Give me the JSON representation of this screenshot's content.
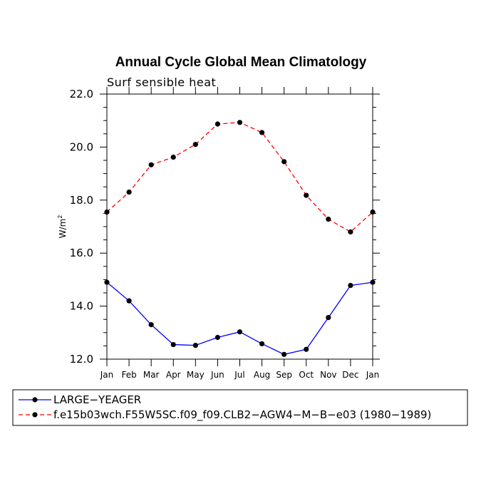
{
  "chart_data": {
    "type": "line",
    "title": "Annual Cycle Global Mean Climatology",
    "subtitle": "Surf sensible heat",
    "xlabel": "",
    "ylabel_base": "W/m",
    "ylabel_sup": "2",
    "ylim": [
      12.0,
      22.0
    ],
    "ytick_values": [
      12.0,
      14.0,
      16.0,
      18.0,
      20.0,
      22.0
    ],
    "ytick_labels": [
      "12.0",
      "14.0",
      "16.0",
      "18.0",
      "20.0",
      "22.0"
    ],
    "categories": [
      "Jan",
      "Feb",
      "Mar",
      "Apr",
      "May",
      "Jun",
      "Jul",
      "Aug",
      "Sep",
      "Oct",
      "Nov",
      "Dec",
      "Jan"
    ],
    "series": [
      {
        "name": "LARGE−YEAGER",
        "color": "#0000ff",
        "dash": "solid",
        "values": [
          14.9,
          14.2,
          13.3,
          12.55,
          12.52,
          12.82,
          13.03,
          12.58,
          12.18,
          12.37,
          13.57,
          14.78,
          14.9
        ]
      },
      {
        "name": "f.e15b03wch.F55W5SC.f09_f09.CLB2−AGW4−M−B−e03 (1980−1989)",
        "color": "#ff0000",
        "dash": "dashed",
        "values": [
          17.55,
          18.3,
          19.33,
          19.62,
          20.1,
          20.87,
          20.93,
          20.55,
          19.45,
          18.18,
          17.28,
          16.8,
          17.55
        ]
      }
    ],
    "legend_position": "bottom-left"
  }
}
